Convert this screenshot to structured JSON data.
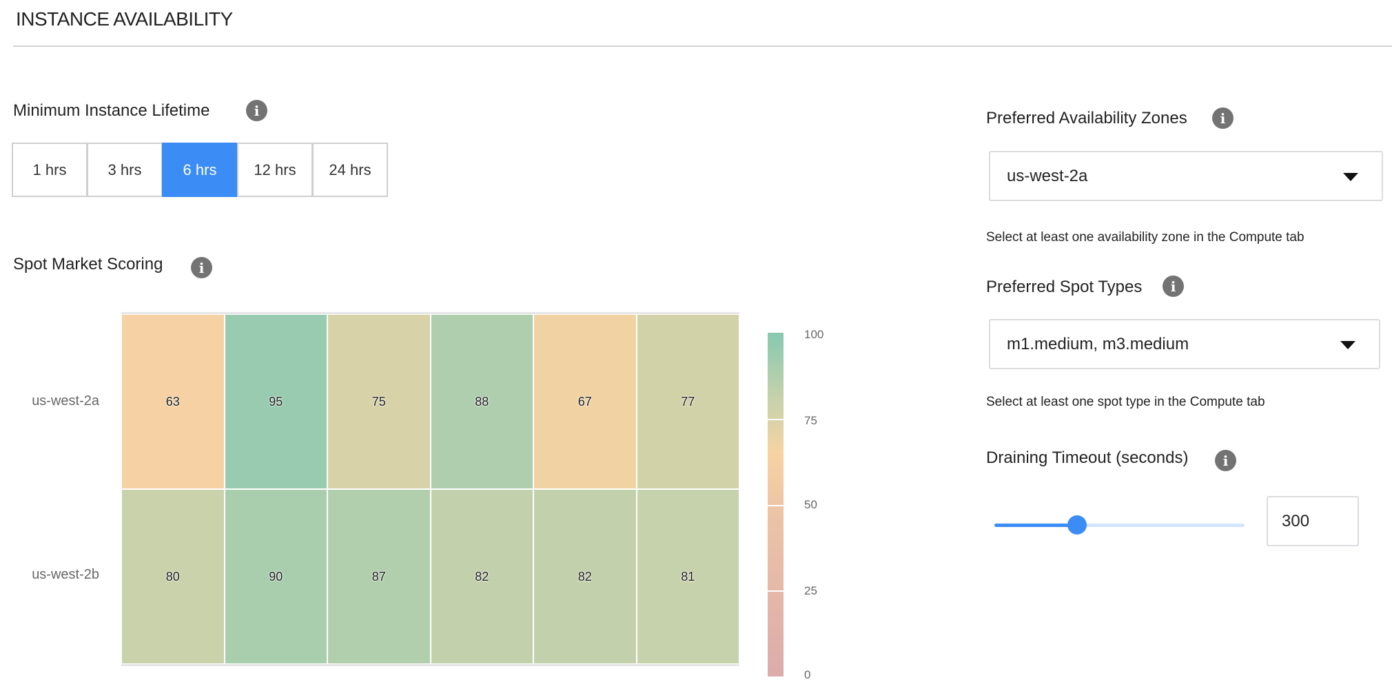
{
  "header": {
    "title": "INSTANCE AVAILABILITY"
  },
  "lifetime": {
    "label": "Minimum Instance Lifetime",
    "info_icon": "info-icon",
    "options": [
      "1 hrs",
      "3 hrs",
      "6 hrs",
      "12 hrs",
      "24 hrs"
    ],
    "selected": "6 hrs",
    "accent": "#3b8cf5"
  },
  "scoring": {
    "label": "Spot Market Scoring",
    "info_icon": "info-icon"
  },
  "chart_data": {
    "type": "heatmap",
    "rows": [
      "us-west-2a",
      "us-west-2b"
    ],
    "values": [
      [
        63,
        95,
        75,
        88,
        67,
        77
      ],
      [
        80,
        90,
        87,
        82,
        82,
        81
      ]
    ],
    "colorbar": {
      "range": [
        0,
        100
      ],
      "ticks": [
        "100",
        "75",
        "50",
        "25",
        "0"
      ],
      "stops": [
        {
          "value": 0,
          "color": "#dcabab"
        },
        {
          "value": 50,
          "color": "#eec5a6"
        },
        {
          "value": 65,
          "color": "#f7d3a2"
        },
        {
          "value": 80,
          "color": "#c9d2ab"
        },
        {
          "value": 100,
          "color": "#87c9b0"
        }
      ]
    }
  },
  "zones": {
    "label": "Preferred Availability Zones",
    "value": "us-west-2a",
    "help": "Select at least one availability zone in the Compute tab"
  },
  "spot_types": {
    "label": "Preferred Spot Types",
    "value": "m1.medium, m3.medium",
    "help": "Select at least one spot type in the Compute tab"
  },
  "draining": {
    "label": "Draining Timeout (seconds)",
    "value": "300",
    "slider_fraction": 0.33
  }
}
